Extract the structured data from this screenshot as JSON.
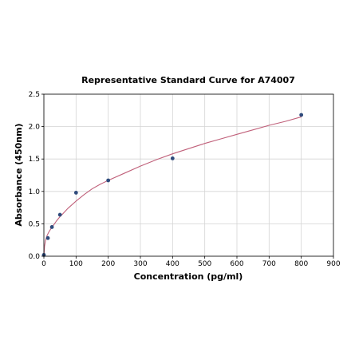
{
  "chart_data": {
    "type": "scatter",
    "title": "Representative Standard Curve for A74007",
    "xlabel": "Concentration (pg/ml)",
    "ylabel": "Absorbance (450nm)",
    "xlim": [
      0,
      900
    ],
    "ylim": [
      0,
      2.5
    ],
    "xticks": [
      0,
      100,
      200,
      300,
      400,
      500,
      600,
      700,
      800,
      900
    ],
    "yticks": [
      0.0,
      0.5,
      1.0,
      1.5,
      2.0,
      2.5
    ],
    "xtick_labels": [
      "0",
      "100",
      "200",
      "300",
      "400",
      "500",
      "600",
      "700",
      "800",
      "900"
    ],
    "ytick_labels": [
      "0.0",
      "0.5",
      "1.0",
      "1.5",
      "2.0",
      "2.5"
    ],
    "grid": true,
    "legend": "none",
    "series": [
      {
        "points": [
          {
            "x": 0,
            "y": 0.02
          },
          {
            "x": 12.5,
            "y": 0.28
          },
          {
            "x": 25,
            "y": 0.45
          },
          {
            "x": 50,
            "y": 0.64
          },
          {
            "x": 100,
            "y": 0.98
          },
          {
            "x": 200,
            "y": 1.17
          },
          {
            "x": 400,
            "y": 1.51
          },
          {
            "x": 800,
            "y": 2.18
          }
        ],
        "color": "#2f4b7c"
      }
    ],
    "fit_curve": {
      "points": [
        [
          0,
          0.0
        ],
        [
          2,
          0.15
        ],
        [
          5,
          0.24
        ],
        [
          10,
          0.32
        ],
        [
          15,
          0.37
        ],
        [
          20,
          0.41
        ],
        [
          30,
          0.48
        ],
        [
          40,
          0.55
        ],
        [
          50,
          0.61
        ],
        [
          60,
          0.66
        ],
        [
          75,
          0.74
        ],
        [
          100,
          0.85
        ],
        [
          125,
          0.95
        ],
        [
          150,
          1.04
        ],
        [
          175,
          1.11
        ],
        [
          200,
          1.17
        ],
        [
          250,
          1.28
        ],
        [
          300,
          1.39
        ],
        [
          350,
          1.49
        ],
        [
          400,
          1.58
        ],
        [
          450,
          1.66
        ],
        [
          500,
          1.74
        ],
        [
          550,
          1.81
        ],
        [
          600,
          1.88
        ],
        [
          650,
          1.95
        ],
        [
          700,
          2.02
        ],
        [
          750,
          2.08
        ],
        [
          800,
          2.15
        ]
      ],
      "color": "#c0607a"
    }
  }
}
